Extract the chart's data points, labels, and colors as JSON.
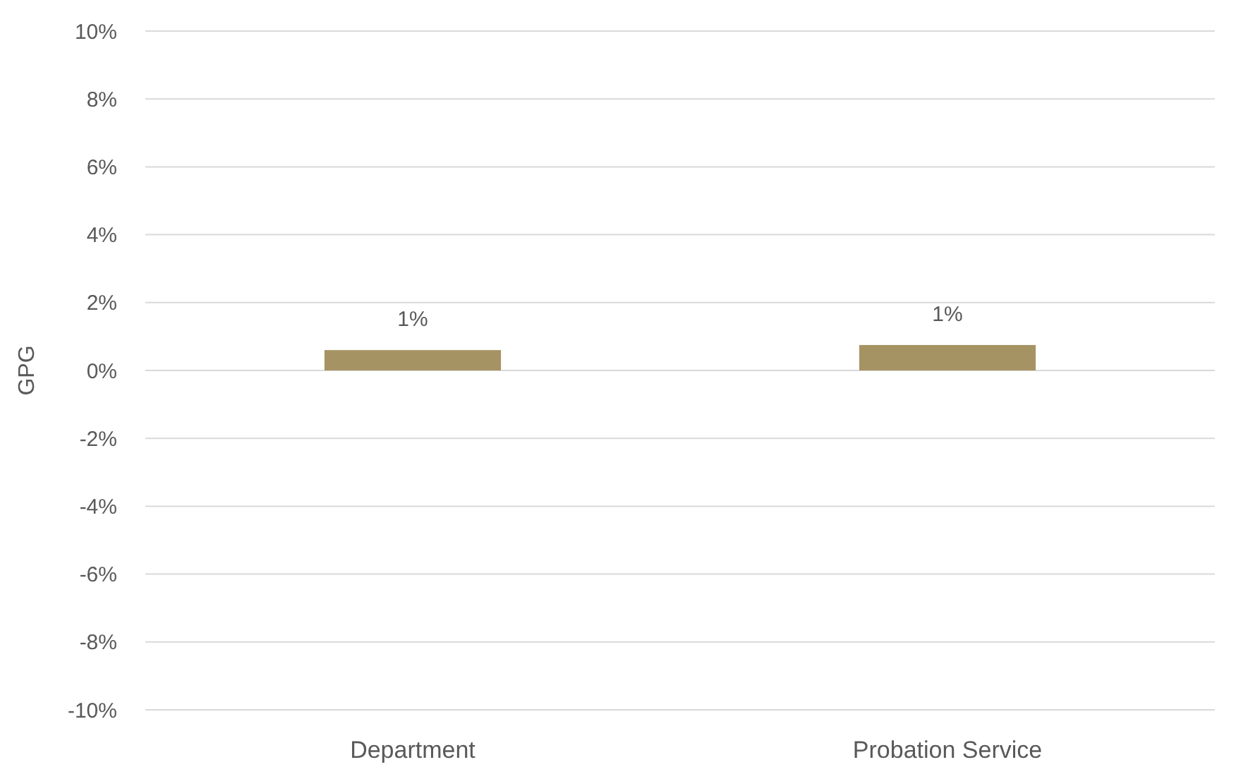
{
  "chart_data": {
    "type": "bar",
    "ylabel": "GPG",
    "categories": [
      "Department",
      "Probation Service"
    ],
    "series": [
      {
        "color": "#a69363",
        "values": [
          0.6,
          0.75
        ],
        "value_labels": [
          "1%",
          "1%"
        ]
      }
    ],
    "ylim": [
      -10,
      10
    ],
    "yticks": [
      {
        "value": -10,
        "label": "-10%"
      },
      {
        "value": -8,
        "label": "-8%"
      },
      {
        "value": -6,
        "label": "-6%"
      },
      {
        "value": -4,
        "label": "-4%"
      },
      {
        "value": -2,
        "label": "-2%"
      },
      {
        "value": 0,
        "label": "0%"
      },
      {
        "value": 2,
        "label": "2%"
      },
      {
        "value": 4,
        "label": "4%"
      },
      {
        "value": 6,
        "label": "6%"
      },
      {
        "value": 8,
        "label": "8%"
      },
      {
        "value": 10,
        "label": "10%"
      }
    ],
    "grid": "y"
  }
}
